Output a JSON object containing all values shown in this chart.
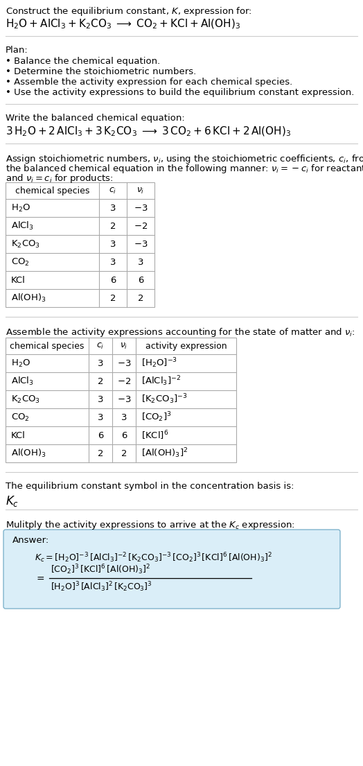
{
  "bg_color": "#ffffff",
  "text_color": "#000000",
  "title_line1": "Construct the equilibrium constant, $K$, expression for:",
  "plan_items": [
    "• Balance the chemical equation.",
    "• Determine the stoichiometric numbers.",
    "• Assemble the activity expression for each chemical species.",
    "• Use the activity expressions to build the equilibrium constant expression."
  ],
  "table1_rows": [
    [
      "$\\mathrm{H_2O}$",
      "3",
      "$-3$"
    ],
    [
      "$\\mathrm{AlCl_3}$",
      "2",
      "$-2$"
    ],
    [
      "$\\mathrm{K_2CO_3}$",
      "3",
      "$-3$"
    ],
    [
      "$\\mathrm{CO_2}$",
      "3",
      "3"
    ],
    [
      "KCl",
      "6",
      "6"
    ],
    [
      "$\\mathrm{Al(OH)_3}$",
      "2",
      "2"
    ]
  ],
  "table2_rows": [
    [
      "$\\mathrm{H_2O}$",
      "3",
      "$-3$",
      "$[\\mathrm{H_2O}]^{-3}$"
    ],
    [
      "$\\mathrm{AlCl_3}$",
      "2",
      "$-2$",
      "$[\\mathrm{AlCl_3}]^{-2}$"
    ],
    [
      "$\\mathrm{K_2CO_3}$",
      "3",
      "$-3$",
      "$[\\mathrm{K_2CO_3}]^{-3}$"
    ],
    [
      "$\\mathrm{CO_2}$",
      "3",
      "3",
      "$[\\mathrm{CO_2}]^{3}$"
    ],
    [
      "KCl",
      "6",
      "6",
      "$[\\mathrm{KCl}]^{6}$"
    ],
    [
      "$\\mathrm{Al(OH)_3}$",
      "2",
      "2",
      "$[\\mathrm{Al(OH)_3}]^{2}$"
    ]
  ],
  "answer_box_color": "#daeef8",
  "answer_box_border": "#7fb3cc"
}
